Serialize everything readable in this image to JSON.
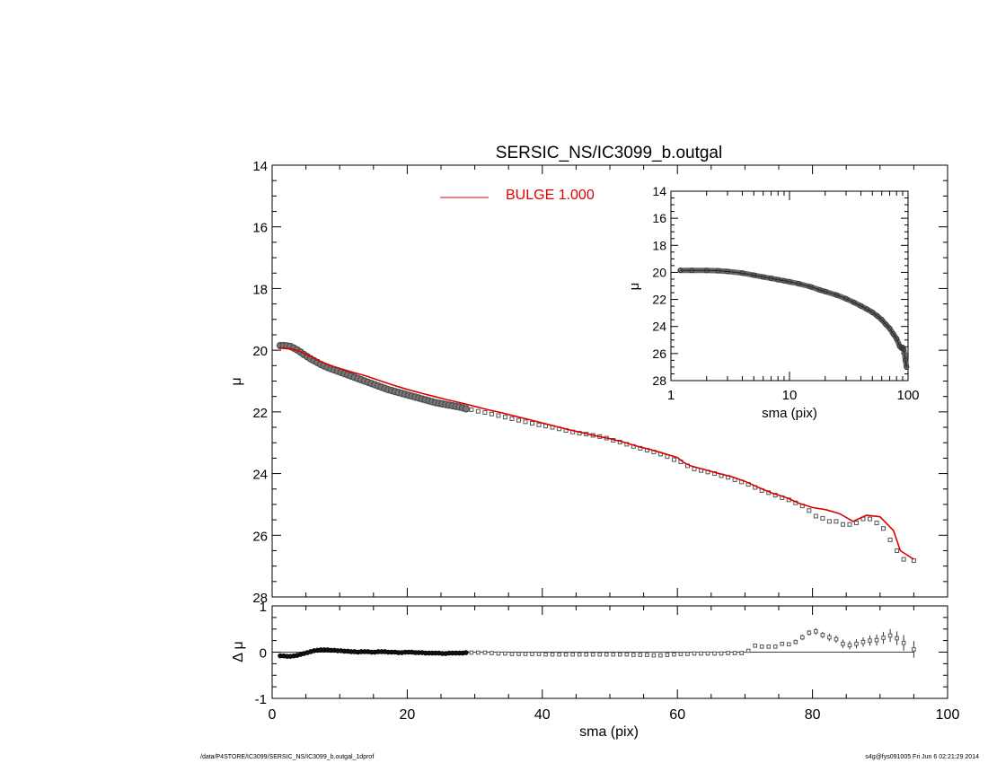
{
  "footer": {
    "path": "/data/P4STORE/IC3099/SERSIC_NS/IC3099_b.outgal_1dprof",
    "stamp": "s4g@fys091005  Fri Jun  6 02:21:29 2014"
  },
  "colors": {
    "model": "#dd0000",
    "data": "#555555",
    "axis": "#000000"
  },
  "chart_data": [
    {
      "id": "main",
      "type": "scatter",
      "title": "SERSIC_NS/IC3099_b.outgal",
      "xlabel": "",
      "ylabel": "μ",
      "xlim": [
        0,
        100
      ],
      "ylim": [
        14,
        28
      ],
      "y_inverted": true,
      "xticks": [
        0,
        20,
        40,
        60,
        80,
        100
      ],
      "yticks": [
        14,
        16,
        18,
        20,
        22,
        24,
        26,
        28
      ],
      "legend": {
        "label": "BULGE  1.000",
        "placement": "top-center"
      },
      "dense_data": {
        "x": [
          1.2,
          1.7,
          2.2,
          2.7,
          3.2,
          3.7,
          4.2,
          4.7,
          5.2,
          5.7,
          6.2,
          6.7,
          7.2,
          7.7,
          8.2,
          8.7,
          9.2,
          9.7,
          10.2,
          10.7,
          11.2,
          11.7,
          12.2,
          12.7,
          13.2,
          13.7,
          14.2,
          14.7,
          15.2,
          15.7,
          16.2,
          16.7,
          17.2,
          17.7,
          18.2,
          18.7,
          19.2,
          19.7,
          20.2,
          20.7,
          21.2,
          21.7,
          22.2,
          22.7,
          23.2,
          23.7,
          24.2,
          24.7,
          25.2,
          25.7,
          26.2,
          26.7,
          27.2,
          27.7,
          28.2,
          28.7
        ],
        "y": [
          19.85,
          19.85,
          19.86,
          19.88,
          19.93,
          19.99,
          20.06,
          20.14,
          20.21,
          20.28,
          20.34,
          20.4,
          20.46,
          20.51,
          20.56,
          20.6,
          20.64,
          20.68,
          20.72,
          20.76,
          20.8,
          20.84,
          20.88,
          20.92,
          20.96,
          21.0,
          21.04,
          21.08,
          21.12,
          21.16,
          21.2,
          21.24,
          21.28,
          21.31,
          21.34,
          21.37,
          21.4,
          21.43,
          21.46,
          21.49,
          21.52,
          21.55,
          21.58,
          21.61,
          21.64,
          21.67,
          21.7,
          21.72,
          21.74,
          21.76,
          21.78,
          21.8,
          21.82,
          21.84,
          21.87,
          21.9
        ]
      },
      "sparse_data": {
        "x": [
          29.5,
          30.5,
          31.5,
          32.5,
          33.5,
          34.5,
          35.5,
          36.5,
          37.5,
          38.5,
          39.5,
          40.5,
          41.5,
          42.5,
          43.5,
          44.5,
          45.5,
          46.5,
          47.5,
          48.5,
          49.5,
          50.5,
          51.5,
          52.5,
          53.5,
          54.5,
          55.5,
          56.5,
          57.5,
          58.5,
          59.5,
          60.5,
          61.5,
          62.5,
          63.5,
          64.5,
          65.5,
          66.5,
          67.5,
          68.5,
          69.5,
          70.5,
          71.5,
          72.5,
          73.5,
          74.5,
          75.5,
          76.5,
          77.5,
          78.5,
          79.5,
          80.5,
          81.5,
          82.5,
          83.5,
          84.5,
          85.5,
          86.5,
          87.5,
          88.5,
          89.5,
          90.5,
          91.5,
          92.5,
          93.5,
          95.0
        ],
        "y": [
          21.93,
          21.98,
          22.02,
          22.07,
          22.12,
          22.17,
          22.22,
          22.27,
          22.32,
          22.37,
          22.42,
          22.46,
          22.5,
          22.55,
          22.6,
          22.65,
          22.69,
          22.72,
          22.76,
          22.8,
          22.85,
          22.92,
          22.98,
          23.05,
          23.12,
          23.18,
          23.24,
          23.3,
          23.37,
          23.45,
          23.55,
          23.62,
          23.75,
          23.85,
          23.9,
          23.95,
          24.0,
          24.07,
          24.12,
          24.2,
          24.27,
          24.35,
          24.45,
          24.55,
          24.62,
          24.7,
          24.78,
          24.85,
          24.95,
          25.05,
          25.2,
          25.38,
          25.45,
          25.55,
          25.55,
          25.65,
          25.65,
          25.6,
          25.47,
          25.47,
          25.6,
          25.78,
          26.15,
          26.5,
          26.78,
          26.82
        ]
      },
      "model_line": {
        "x": [
          1,
          1.5,
          2,
          3,
          4,
          5,
          6,
          7,
          8,
          9,
          10,
          12,
          14,
          16,
          18,
          20,
          22,
          24,
          26,
          28,
          30,
          32,
          34,
          36,
          38,
          40,
          42,
          44,
          46,
          48,
          50,
          52,
          54,
          56,
          58,
          60,
          61,
          62,
          64,
          66,
          68,
          70,
          72,
          74,
          76,
          78,
          80,
          82,
          84,
          86,
          88,
          90,
          92,
          93,
          95
        ],
        "y": [
          19.93,
          19.93,
          19.94,
          19.96,
          20.03,
          20.13,
          20.24,
          20.35,
          20.44,
          20.52,
          20.59,
          20.72,
          20.84,
          20.99,
          21.14,
          21.27,
          21.39,
          21.5,
          21.61,
          21.71,
          21.82,
          21.93,
          22.03,
          22.14,
          22.25,
          22.36,
          22.47,
          22.58,
          22.68,
          22.78,
          22.87,
          22.98,
          23.11,
          23.22,
          23.35,
          23.48,
          23.65,
          23.75,
          23.87,
          23.99,
          24.1,
          24.25,
          24.45,
          24.63,
          24.77,
          24.96,
          25.1,
          25.17,
          25.3,
          25.55,
          25.35,
          25.4,
          25.85,
          26.5,
          26.78
        ]
      }
    },
    {
      "id": "residual",
      "type": "scatter",
      "xlabel": "sma (pix)",
      "ylabel": "Δ μ",
      "xlim": [
        0,
        100
      ],
      "ylim": [
        -1,
        1
      ],
      "xticks": [
        0,
        20,
        40,
        60,
        80,
        100
      ],
      "yticks": [
        -1,
        0,
        1
      ],
      "dense_data": {
        "x": [
          1.2,
          1.7,
          2.2,
          2.7,
          3.2,
          3.7,
          4.2,
          4.7,
          5.2,
          5.7,
          6.2,
          6.7,
          7.2,
          7.7,
          8.2,
          8.7,
          9.2,
          9.7,
          10.2,
          10.7,
          11.2,
          11.7,
          12.2,
          12.7,
          13.2,
          13.7,
          14.2,
          14.7,
          15.2,
          15.7,
          16.2,
          16.7,
          17.2,
          17.7,
          18.2,
          18.7,
          19.2,
          19.7,
          20.2,
          20.7,
          21.2,
          21.7,
          22.2,
          22.7,
          23.2,
          23.7,
          24.2,
          24.7,
          25.2,
          25.7,
          26.2,
          26.7,
          27.2,
          27.7,
          28.2,
          28.7
        ],
        "y": [
          -0.08,
          -0.08,
          -0.09,
          -0.09,
          -0.08,
          -0.07,
          -0.05,
          -0.03,
          -0.01,
          0.01,
          0.03,
          0.04,
          0.05,
          0.05,
          0.05,
          0.04,
          0.04,
          0.03,
          0.03,
          0.02,
          0.02,
          0.01,
          0.01,
          0.0,
          0.01,
          0.01,
          0.01,
          0.0,
          0.0,
          0.01,
          0.01,
          0.01,
          0.0,
          0.0,
          0.0,
          -0.01,
          -0.01,
          0.0,
          0.0,
          0.0,
          -0.01,
          -0.01,
          -0.01,
          -0.02,
          -0.02,
          -0.02,
          -0.02,
          -0.02,
          -0.03,
          -0.03,
          -0.02,
          -0.02,
          -0.02,
          -0.02,
          -0.02,
          -0.01
        ]
      },
      "sparse_data": {
        "x": [
          29.5,
          30.5,
          31.5,
          32.5,
          33.5,
          34.5,
          35.5,
          36.5,
          37.5,
          38.5,
          39.5,
          40.5,
          41.5,
          42.5,
          43.5,
          44.5,
          45.5,
          46.5,
          47.5,
          48.5,
          49.5,
          50.5,
          51.5,
          52.5,
          53.5,
          54.5,
          55.5,
          56.5,
          57.5,
          58.5,
          59.5,
          60.5,
          61.5,
          62.5,
          63.5,
          64.5,
          65.5,
          66.5,
          67.5,
          68.5,
          69.5,
          70.5,
          71.5,
          72.5,
          73.5,
          74.5,
          75.5,
          76.5,
          77.5,
          78.5,
          79.5,
          80.5,
          81.5,
          82.5,
          83.5,
          84.5,
          85.5,
          86.5,
          87.5,
          88.5,
          89.5,
          90.5,
          91.5,
          92.5,
          93.5,
          95.0
        ],
        "y": [
          -0.01,
          -0.01,
          -0.01,
          -0.02,
          -0.03,
          -0.03,
          -0.04,
          -0.04,
          -0.04,
          -0.04,
          -0.04,
          -0.05,
          -0.05,
          -0.05,
          -0.05,
          -0.05,
          -0.05,
          -0.05,
          -0.05,
          -0.05,
          -0.05,
          -0.05,
          -0.05,
          -0.05,
          -0.06,
          -0.06,
          -0.06,
          -0.07,
          -0.07,
          -0.06,
          -0.05,
          -0.04,
          -0.04,
          -0.03,
          -0.03,
          -0.03,
          -0.03,
          -0.03,
          -0.02,
          -0.02,
          -0.02,
          0.03,
          0.14,
          0.12,
          0.12,
          0.12,
          0.18,
          0.17,
          0.22,
          0.32,
          0.42,
          0.45,
          0.37,
          0.32,
          0.28,
          0.18,
          0.15,
          0.18,
          0.22,
          0.25,
          0.26,
          0.31,
          0.36,
          0.3,
          0.2,
          0.06
        ],
        "err": [
          0,
          0,
          0,
          0,
          0,
          0,
          0,
          0,
          0,
          0,
          0,
          0,
          0,
          0,
          0,
          0,
          0,
          0,
          0,
          0,
          0,
          0,
          0,
          0,
          0,
          0,
          0,
          0,
          0,
          0,
          0,
          0,
          0,
          0,
          0,
          0,
          0,
          0,
          0,
          0,
          0,
          0.02,
          0.03,
          0.03,
          0.03,
          0.04,
          0.04,
          0.04,
          0.05,
          0.06,
          0.06,
          0.07,
          0.07,
          0.08,
          0.08,
          0.09,
          0.09,
          0.1,
          0.1,
          0.11,
          0.12,
          0.13,
          0.14,
          0.15,
          0.17,
          0.18
        ]
      },
      "zero_line": 0
    },
    {
      "id": "inset",
      "type": "scatter",
      "xlabel": "sma (pix)",
      "ylabel": "μ",
      "xscale": "log",
      "xlim": [
        1,
        100
      ],
      "ylim": [
        14,
        28
      ],
      "y_inverted": true,
      "xticks": [
        1,
        10,
        100
      ],
      "yticks": [
        14,
        16,
        18,
        20,
        22,
        24,
        26,
        28
      ],
      "profile": {
        "x": [
          1.2,
          1.5,
          2,
          2.5,
          3,
          4,
          5,
          6,
          7,
          8,
          9,
          10,
          12,
          15,
          18,
          20,
          25,
          30,
          35,
          40,
          45,
          50,
          55,
          60,
          65,
          70,
          75,
          80,
          85,
          88,
          90,
          92,
          95,
          97
        ],
        "y": [
          19.85,
          19.85,
          19.86,
          19.88,
          19.93,
          20.05,
          20.21,
          20.34,
          20.44,
          20.54,
          20.62,
          20.7,
          20.84,
          21.06,
          21.3,
          21.42,
          21.68,
          21.95,
          22.22,
          22.48,
          22.72,
          22.95,
          23.22,
          23.5,
          23.85,
          24.15,
          24.55,
          24.9,
          25.45,
          25.6,
          25.55,
          25.7,
          26.5,
          27.0
        ]
      }
    }
  ]
}
